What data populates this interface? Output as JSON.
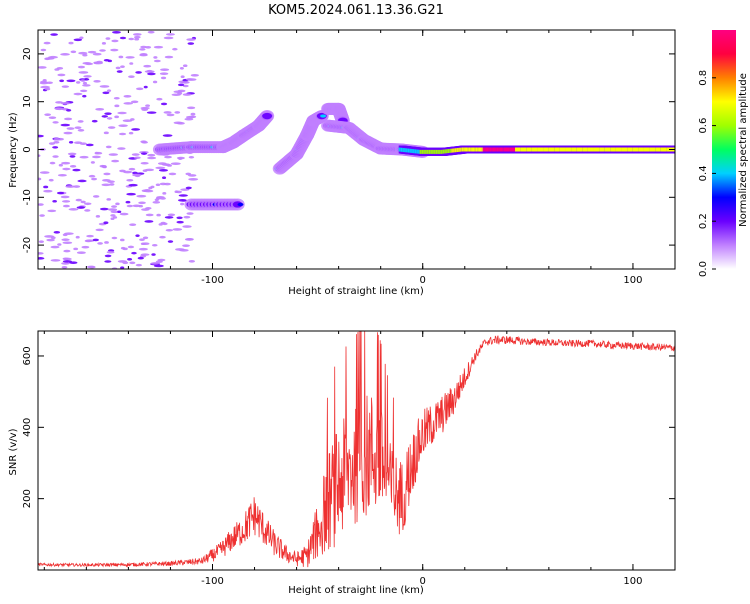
{
  "chart_data": [
    {
      "type": "heatmap",
      "title": "KOM5.2024.061.13.36.G21",
      "xlabel": "Height of straight line (km)",
      "ylabel": "Frequency (Hz)",
      "xlim": [
        -183,
        120
      ],
      "ylim": [
        -25,
        25
      ],
      "xticks": [
        "-100",
        "0",
        "100"
      ],
      "yticks": [
        "-20",
        "-10",
        "0",
        "10",
        "20"
      ],
      "grid": false,
      "colorbar": {
        "label": "Normalized spectral amplitude",
        "range": [
          0,
          1
        ],
        "ticks": [
          "0.0",
          "0.2",
          "0.4",
          "0.6",
          "0.8"
        ],
        "colormap": [
          "#ffffff",
          "#c080ff",
          "#6a00ff",
          "#0000ff",
          "#00d0ff",
          "#00ff60",
          "#a0ff00",
          "#ffff00",
          "#ff8000",
          "#ff0040",
          "#ff0080"
        ]
      },
      "features": [
        {
          "desc": "ridge",
          "points": [
            [
              -125,
              0
            ],
            [
              -110,
              0.5
            ],
            [
              -95,
              0.5
            ],
            [
              -90,
              1.5
            ],
            [
              -85,
              3
            ],
            [
              -78,
              5
            ],
            [
              -74,
              7
            ]
          ]
        },
        {
          "desc": "ridge",
          "points": [
            [
              -68,
              -4
            ],
            [
              -60,
              -1
            ],
            [
              -55,
              3
            ],
            [
              -52,
              6
            ],
            [
              -48,
              7
            ]
          ]
        },
        {
          "desc": "blob",
          "points": [
            [
              -45,
              8.5
            ],
            [
              -40,
              8.5
            ],
            [
              -38,
              6
            ]
          ]
        },
        {
          "desc": "ridge",
          "points": [
            [
              -45,
              5
            ],
            [
              -35,
              4.5
            ],
            [
              -28,
              2
            ],
            [
              -20,
              0.2
            ],
            [
              -10,
              0
            ],
            [
              0,
              -0.5
            ],
            [
              10,
              -0.5
            ],
            [
              20,
              0
            ],
            [
              40,
              0
            ],
            [
              120,
              0
            ]
          ]
        },
        {
          "desc": "isolated line",
          "points": [
            [
              -110,
              -11.5
            ],
            [
              -88,
              -11.5
            ]
          ]
        }
      ]
    },
    {
      "type": "line",
      "title": "",
      "xlabel": "Height of straight line (km)",
      "ylabel": "SNR (v/v)",
      "xlim": [
        -183,
        120
      ],
      "ylim": [
        0,
        670
      ],
      "xticks": [
        "-100",
        "0",
        "100"
      ],
      "yticks": [
        "200",
        "400",
        "600"
      ],
      "grid": false,
      "color": "#ee3030",
      "series": [
        {
          "x": [
            -183,
            -160,
            -140,
            -120,
            -105,
            -96,
            -90,
            -85,
            -80,
            -75,
            -70,
            -65,
            -60,
            -55,
            -50,
            -45,
            -40,
            -35,
            -30,
            -25,
            -20,
            -15,
            -10,
            -5,
            0,
            5,
            10,
            15,
            20,
            25,
            30,
            35,
            40,
            50,
            60,
            70,
            80,
            90,
            100,
            110,
            120
          ],
          "y": [
            15,
            14,
            15,
            18,
            25,
            55,
            90,
            115,
            155,
            110,
            70,
            45,
            30,
            40,
            110,
            190,
            240,
            280,
            300,
            330,
            310,
            230,
            200,
            300,
            380,
            410,
            440,
            480,
            540,
            600,
            640,
            645,
            645,
            640,
            638,
            635,
            635,
            630,
            628,
            625,
            623
          ],
          "noise": [
            4,
            4,
            5,
            6,
            10,
            25,
            35,
            45,
            60,
            45,
            35,
            25,
            20,
            35,
            80,
            140,
            170,
            160,
            170,
            180,
            150,
            120,
            110,
            90,
            70,
            60,
            55,
            45,
            30,
            15,
            12,
            12,
            12,
            10,
            10,
            10,
            10,
            10,
            10,
            10,
            10
          ]
        }
      ]
    }
  ]
}
